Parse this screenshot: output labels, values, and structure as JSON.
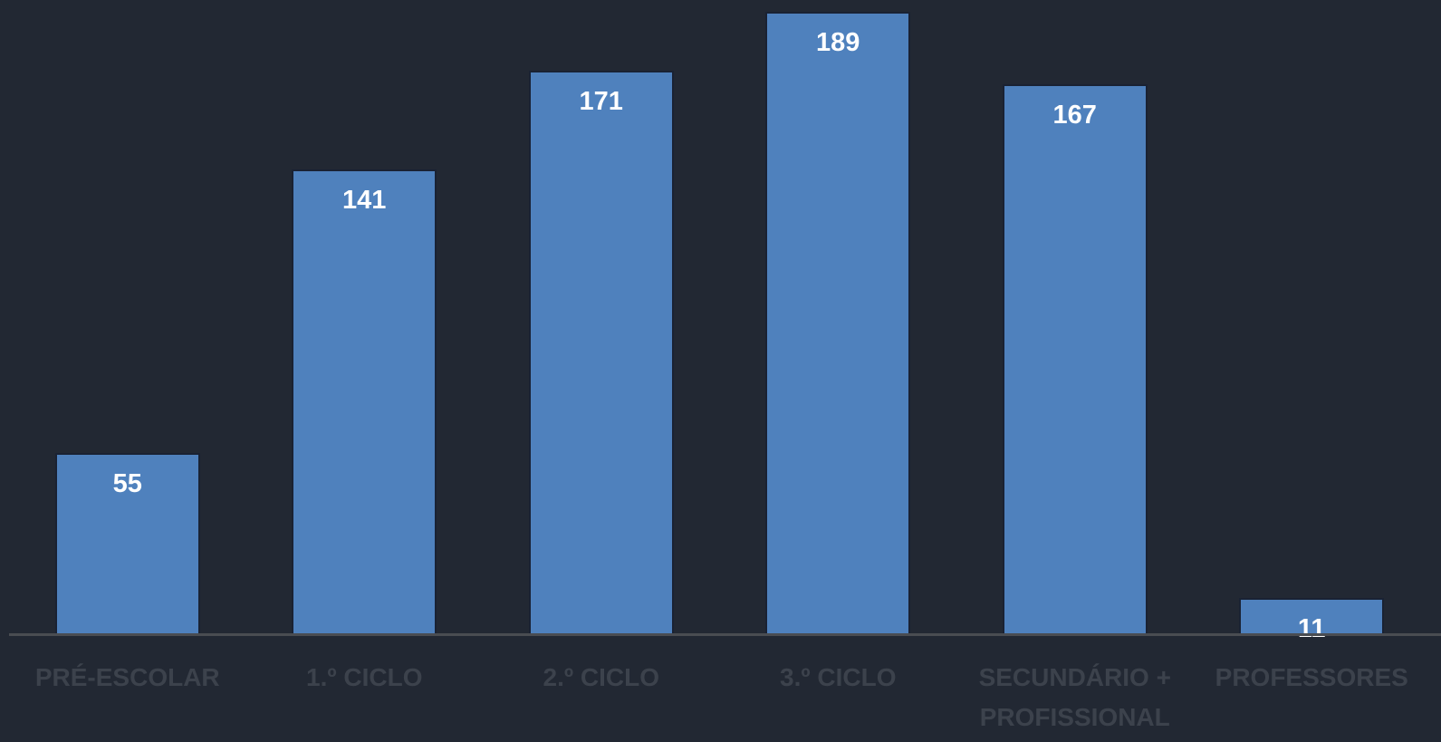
{
  "chart_data": {
    "type": "bar",
    "categories": [
      "PRÉ-ESCOLAR",
      "1.º CICLO",
      "2.º CICLO",
      "3.º CICLO",
      "SECUNDÁRIO + PROFISSIONAL",
      "PROFESSORES"
    ],
    "values": [
      55,
      141,
      171,
      189,
      167,
      11
    ],
    "color": "#4f81bd"
  }
}
